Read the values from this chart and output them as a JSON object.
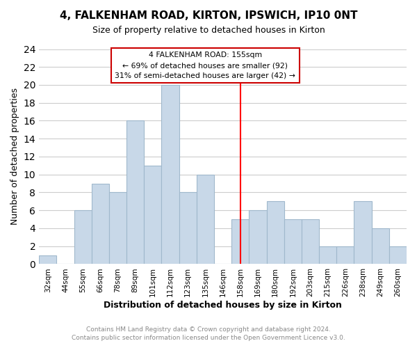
{
  "title": "4, FALKENHAM ROAD, KIRTON, IPSWICH, IP10 0NT",
  "subtitle": "Size of property relative to detached houses in Kirton",
  "xlabel": "Distribution of detached houses by size in Kirton",
  "ylabel": "Number of detached properties",
  "bar_labels": [
    "32sqm",
    "44sqm",
    "55sqm",
    "66sqm",
    "78sqm",
    "89sqm",
    "101sqm",
    "112sqm",
    "123sqm",
    "135sqm",
    "146sqm",
    "158sqm",
    "169sqm",
    "180sqm",
    "192sqm",
    "203sqm",
    "215sqm",
    "226sqm",
    "238sqm",
    "249sqm",
    "260sqm"
  ],
  "bar_values": [
    1,
    0,
    6,
    9,
    8,
    16,
    11,
    20,
    8,
    10,
    0,
    5,
    6,
    7,
    5,
    5,
    2,
    2,
    7,
    4,
    2
  ],
  "bar_color": "#c8d8e8",
  "bar_edge_color": "#a0b8cc",
  "reference_line_x_label": "158sqm",
  "reference_line_color": "red",
  "ylim": [
    0,
    24
  ],
  "yticks": [
    0,
    2,
    4,
    6,
    8,
    10,
    12,
    14,
    16,
    18,
    20,
    22,
    24
  ],
  "grid_color": "#cccccc",
  "background_color": "#ffffff",
  "annotation_title": "4 FALKENHAM ROAD: 155sqm",
  "annotation_line1": "← 69% of detached houses are smaller (92)",
  "annotation_line2": "31% of semi-detached houses are larger (42) →",
  "annotation_box_color": "#ffffff",
  "annotation_border_color": "#cc0000",
  "footer_line1": "Contains HM Land Registry data © Crown copyright and database right 2024.",
  "footer_line2": "Contains public sector information licensed under the Open Government Licence v3.0.",
  "footer_color": "#888888"
}
